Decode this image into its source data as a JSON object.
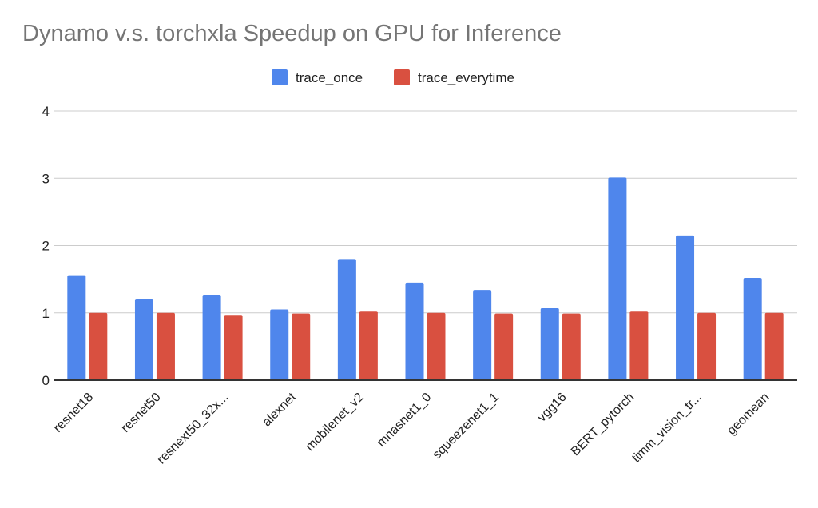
{
  "chart_data": {
    "type": "bar",
    "title": "Dynamo v.s. torchxla Speedup on GPU for Inference",
    "xlabel": "",
    "ylabel": "",
    "ylim": [
      0,
      4
    ],
    "yticks": [
      "0",
      "1",
      "2",
      "3",
      "4"
    ],
    "grid": true,
    "legend_position": "top",
    "categories": [
      "resnet18",
      "resnet50",
      "resnext50_32x...",
      "alexnet",
      "mobilenet_v2",
      "mnasnet1_0",
      "squeezenet1_1",
      "vgg16",
      "BERT_pytorch",
      "timm_vision_tr...",
      "geomean"
    ],
    "series": [
      {
        "name": "trace_once",
        "color": "#4f86ec",
        "values": [
          1.56,
          1.21,
          1.27,
          1.05,
          1.8,
          1.45,
          1.34,
          1.07,
          3.01,
          2.15,
          1.52
        ]
      },
      {
        "name": "trace_everytime",
        "color": "#d95040",
        "values": [
          1.0,
          1.0,
          0.97,
          0.99,
          1.03,
          1.0,
          0.99,
          0.99,
          1.03,
          1.0,
          1.0
        ]
      }
    ]
  }
}
